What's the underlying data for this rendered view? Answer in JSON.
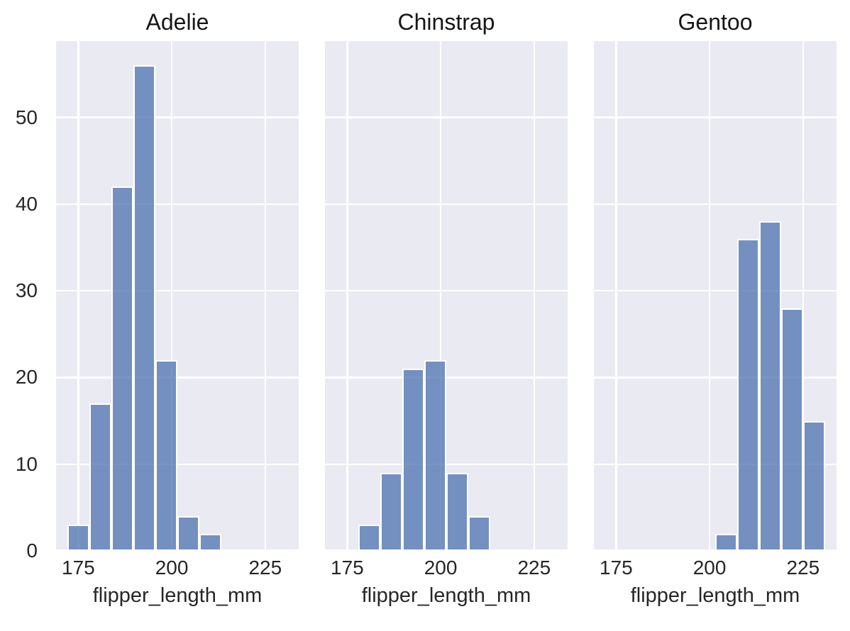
{
  "chart_data": {
    "type": "bar",
    "subtype": "faceted-histogram",
    "xlabel": "flipper_length_mm",
    "ylabel": "",
    "x_ticks": [
      175,
      200,
      225
    ],
    "y_ticks": [
      0,
      10,
      20,
      30,
      40,
      50
    ],
    "xlim": [
      169.05,
      233.95
    ],
    "ylim": [
      0,
      58.8
    ],
    "grid": true,
    "legend": false,
    "bin_edges": [
      172,
      177.9,
      183.8,
      189.7,
      195.6,
      201.5,
      207.4,
      213.3,
      219.2,
      225.1,
      231
    ],
    "facets": [
      {
        "title": "Adelie",
        "first_bin_index": 0,
        "counts": [
          3,
          17,
          42,
          56,
          22,
          4,
          2
        ]
      },
      {
        "title": "Chinstrap",
        "first_bin_index": 1,
        "counts": [
          3,
          9,
          21,
          22,
          9,
          4
        ]
      },
      {
        "title": "Gentoo",
        "first_bin_index": 5,
        "counts": [
          2,
          36,
          38,
          28,
          15
        ]
      }
    ],
    "colors": {
      "bar_fill": "#4c72b0",
      "bar_fill_alpha": "0.75",
      "bar_edge": "#ffffff",
      "panel_background": "#eaeaf2",
      "gridline": "#ffffff",
      "text": "#262626"
    }
  }
}
